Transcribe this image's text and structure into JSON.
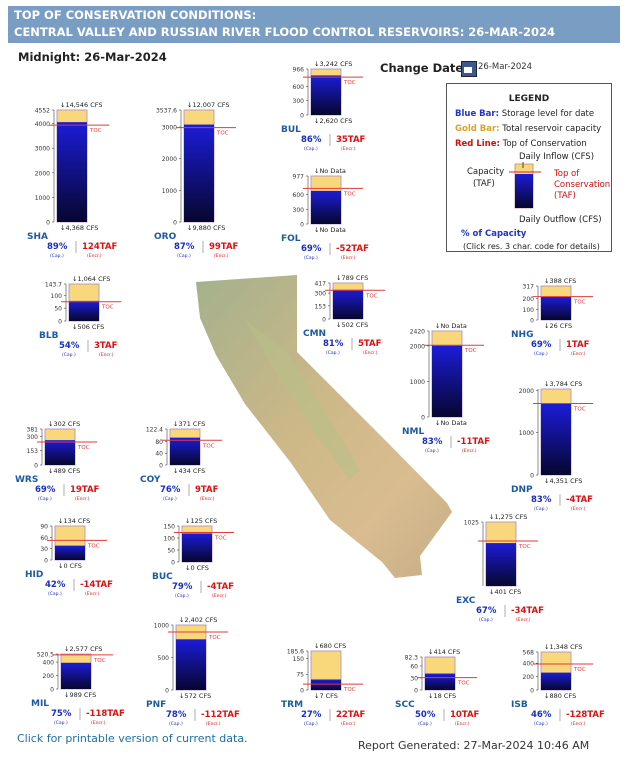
{
  "header": {
    "line1": "TOP OF CONSERVATION CONDITIONS:",
    "line2": "CENTRAL VALLEY AND RUSSIAN RIVER FLOOD CONTROL RESERVOIRS: 26-MAR-2024"
  },
  "midnight_label": "Midnight: 26-Mar-2024",
  "change_date": {
    "label": "Change Date:",
    "value": "26-Mar-2024",
    "icon": "calendar-icon"
  },
  "legend": {
    "title": "LEGEND",
    "blue_key": "Blue Bar:",
    "blue_text": "Storage level for date",
    "gold_key": "Gold Bar:",
    "gold_text": "Total reservoir capacity",
    "red_key": "Red Line:",
    "red_text": "Top of Conservation",
    "capacity": "Capacity",
    "taf": "(TAF)",
    "daily_inflow": "Daily Inflow (CFS)",
    "toc1": "Top of",
    "toc2": "Conservation",
    "toc3": "(TAF)",
    "daily_outflow": "Daily Outflow (CFS)",
    "pct_capacity": "% of Capacity",
    "click_note": "(Click res. 3 char. code for details)"
  },
  "footer": {
    "printable_link": "Click for printable version of current data.",
    "report_generated": "Report Generated: 27-Mar-2024 10:46 AM"
  },
  "chart_data": {
    "type": "bar",
    "units": {
      "capacity": "TAF",
      "flow": "CFS"
    },
    "cap_label": "(Cap.)",
    "encr_label": "(Encr.)",
    "toc_label": "TOC",
    "reservoirs": [
      {
        "code": "SHA",
        "capacity": 4552,
        "ticks": [
          "4552",
          "4000",
          "3000",
          "2000",
          "1000",
          "0"
        ],
        "tick_values": [
          4552,
          4000,
          3000,
          2000,
          1000,
          0
        ],
        "storage": 4059,
        "toc": 3935,
        "inflow": "14,546 CFS",
        "outflow": "4,368 CFS",
        "pct": "89%",
        "encr": "124TAF"
      },
      {
        "code": "ORO",
        "capacity": 3537.6,
        "ticks": [
          "3537.6",
          "3000",
          "2000",
          "1000",
          "0"
        ],
        "tick_values": [
          3537.6,
          3000,
          2000,
          1000,
          0
        ],
        "storage": 3078,
        "toc": 2979,
        "inflow": "12,007 CFS",
        "outflow": "9,880 CFS",
        "pct": "87%",
        "encr": "99TAF"
      },
      {
        "code": "BUL",
        "capacity": 966,
        "ticks": [
          "966",
          "600",
          "300",
          "0"
        ],
        "tick_values": [
          966,
          600,
          300,
          0
        ],
        "storage": 831,
        "toc": 796,
        "inflow": "3,242 CFS",
        "outflow": "2,620 CFS",
        "pct": "86%",
        "encr": "35TAF"
      },
      {
        "code": "FOL",
        "capacity": 977,
        "ticks": [
          "977",
          "600",
          "300",
          "0"
        ],
        "tick_values": [
          977,
          600,
          300,
          0
        ],
        "storage": 674,
        "toc": 726,
        "inflow": "No Data",
        "outflow": "No Data",
        "pct": "69%",
        "encr": "-52TAF"
      },
      {
        "code": "BLB",
        "capacity": 143.7,
        "ticks": [
          "143.7",
          "100",
          "50",
          "0"
        ],
        "tick_values": [
          143.7,
          100,
          50,
          0
        ],
        "storage": 78,
        "toc": 75,
        "inflow": "1,064 CFS",
        "outflow": "506 CFS",
        "pct": "54%",
        "encr": "3TAF"
      },
      {
        "code": "CMN",
        "capacity": 417,
        "ticks": [
          "417",
          "300",
          "153",
          "0"
        ],
        "tick_values": [
          417,
          300,
          153,
          0
        ],
        "storage": 338,
        "toc": 333,
        "inflow": "789 CFS",
        "outflow": "502 CFS",
        "pct": "81%",
        "encr": "5TAF"
      },
      {
        "code": "NHG",
        "capacity": 317,
        "ticks": [
          "317",
          "200",
          "100",
          "0"
        ],
        "tick_values": [
          317,
          200,
          100,
          0
        ],
        "storage": 219,
        "toc": 218,
        "inflow": "388 CFS",
        "outflow": "26 CFS",
        "pct": "69%",
        "encr": "1TAF"
      },
      {
        "code": "NML",
        "capacity": 2420,
        "ticks": [
          "2420",
          "2000",
          "1000",
          "0"
        ],
        "tick_values": [
          2420,
          2000,
          1000,
          0
        ],
        "storage": 2009,
        "toc": 2020,
        "inflow": "No Data",
        "outflow": "No Data",
        "pct": "83%",
        "encr": "-11TAF"
      },
      {
        "code": "DNP",
        "capacity": 2030,
        "ticks": [
          "2000",
          "1000",
          "0"
        ],
        "tick_values": [
          2000,
          1000,
          0
        ],
        "storage": 1685,
        "toc": 1689,
        "inflow": "3,784 CFS",
        "outflow": "4,351 CFS",
        "pct": "83%",
        "encr": "-4TAF"
      },
      {
        "code": "WRS",
        "capacity": 381,
        "ticks": [
          "381",
          "300",
          "153",
          "0"
        ],
        "tick_values": [
          381,
          300,
          153,
          0
        ],
        "storage": 263,
        "toc": 244,
        "inflow": "302 CFS",
        "outflow": "489 CFS",
        "pct": "69%",
        "encr": "19TAF"
      },
      {
        "code": "COY",
        "capacity": 122.4,
        "ticks": [
          "122.4",
          "80",
          "40",
          "0"
        ],
        "tick_values": [
          122.4,
          80,
          40,
          0
        ],
        "storage": 93,
        "toc": 84,
        "inflow": "371 CFS",
        "outflow": "434 CFS",
        "pct": "76%",
        "encr": "9TAF"
      },
      {
        "code": "HID",
        "capacity": 90,
        "ticks": [
          "90",
          "60",
          "30",
          "0"
        ],
        "tick_values": [
          90,
          60,
          30,
          0
        ],
        "storage": 38,
        "toc": 52,
        "inflow": "134 CFS",
        "outflow": "0 CFS",
        "pct": "42%",
        "encr": "-14TAF"
      },
      {
        "code": "BUC",
        "capacity": 150,
        "ticks": [
          "150",
          "100",
          "50",
          "0"
        ],
        "tick_values": [
          150,
          100,
          50,
          0
        ],
        "storage": 119,
        "toc": 123,
        "inflow": "125 CFS",
        "outflow": "0 CFS",
        "pct": "79%",
        "encr": "-4TAF"
      },
      {
        "code": "EXC",
        "capacity": 1025,
        "ticks": [
          "1025"
        ],
        "tick_values": [
          1025
        ],
        "storage": 687,
        "toc": 721,
        "inflow": "1,275 CFS",
        "outflow": "401 CFS",
        "pct": "67%",
        "encr": "-34TAF"
      },
      {
        "code": "MIL",
        "capacity": 520.5,
        "ticks": [
          "520.5",
          "400",
          "200",
          "0"
        ],
        "tick_values": [
          520.5,
          400,
          200,
          0
        ],
        "storage": 390,
        "toc": 508,
        "inflow": "2,577 CFS",
        "outflow": "989 CFS",
        "pct": "75%",
        "encr": "-118TAF"
      },
      {
        "code": "PNF",
        "capacity": 1000,
        "ticks": [
          "1000",
          "500",
          "0"
        ],
        "tick_values": [
          1000,
          500,
          0
        ],
        "storage": 780,
        "toc": 892,
        "inflow": "2,402 CFS",
        "outflow": "572 CFS",
        "pct": "78%",
        "encr": "-112TAF"
      },
      {
        "code": "TRM",
        "capacity": 185.6,
        "ticks": [
          "185.6",
          "150",
          "75",
          "0"
        ],
        "tick_values": [
          185.6,
          150,
          75,
          0
        ],
        "storage": 50,
        "toc": 28,
        "inflow": "680 CFS",
        "outflow": "7 CFS",
        "pct": "27%",
        "encr": "22TAF"
      },
      {
        "code": "SCC",
        "capacity": 82.3,
        "ticks": [
          "82.3",
          "60",
          "30",
          "0"
        ],
        "tick_values": [
          82.3,
          60,
          30,
          0
        ],
        "storage": 41,
        "toc": 31,
        "inflow": "414 CFS",
        "outflow": "18 CFS",
        "pct": "50%",
        "encr": "10TAF"
      },
      {
        "code": "ISB",
        "capacity": 568,
        "ticks": [
          "568",
          "400",
          "200",
          "0"
        ],
        "tick_values": [
          568,
          400,
          200,
          0
        ],
        "storage": 260,
        "toc": 388,
        "inflow": "1,348 CFS",
        "outflow": "880 CFS",
        "pct": "46%",
        "encr": "-128TAF"
      }
    ]
  }
}
